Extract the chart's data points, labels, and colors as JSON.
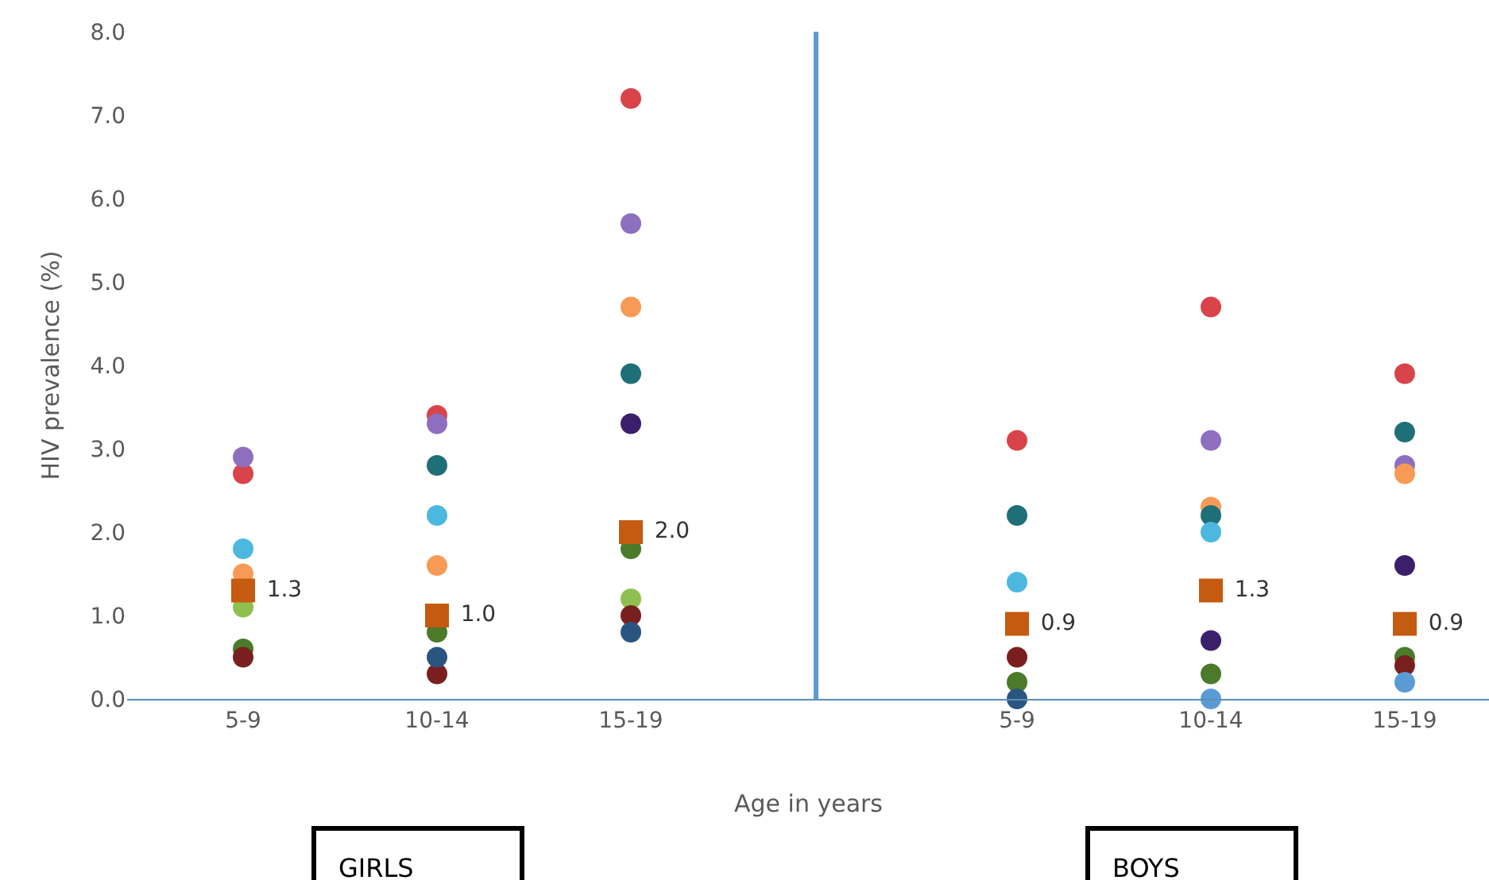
{
  "chart_data": [
    {
      "type": "scatter",
      "categories": [
        "5-9",
        "10-14",
        "15-19"
      ],
      "series": [
        {
          "color": "#d9434a",
          "values": [
            2.7,
            3.4,
            7.2
          ]
        },
        {
          "color": "#8e6fbf",
          "values": [
            2.9,
            3.3,
            5.7
          ]
        },
        {
          "color": "#f79a55",
          "values": [
            1.5,
            1.6,
            4.7
          ]
        },
        {
          "color": "#1f6f78",
          "values": [
            null,
            2.8,
            3.9
          ]
        },
        {
          "color": "#3b1f6b",
          "values": [
            null,
            null,
            3.3
          ]
        },
        {
          "color": "#4cb8e0",
          "values": [
            1.8,
            2.2,
            null
          ]
        },
        {
          "color": "#8fbf4f",
          "values": [
            1.1,
            null,
            1.2
          ]
        },
        {
          "color": "#4a7a2a",
          "values": [
            0.6,
            0.8,
            1.8
          ]
        },
        {
          "color": "#7a1f1f",
          "values": [
            0.5,
            0.3,
            1.0
          ]
        },
        {
          "color": "#2a5580",
          "values": [
            null,
            0.5,
            0.8
          ]
        },
        {
          "color": "#c55a11",
          "marker": "square",
          "values": [
            1.3,
            1.0,
            2.0
          ],
          "value_labels": [
            "1.3",
            "1.0",
            "2.0"
          ]
        }
      ],
      "marker": "circle",
      "ylabel": "HIV prevalence (%)",
      "xlabel": "Age in years",
      "ylim": [
        0,
        8
      ],
      "yticks": [
        {
          "value": 0,
          "label": "0.0"
        },
        {
          "value": 1,
          "label": "1.0"
        },
        {
          "value": 2,
          "label": "2.0"
        },
        {
          "value": 3,
          "label": "3.0"
        },
        {
          "value": 4,
          "label": "4.0"
        },
        {
          "value": 5,
          "label": "5.0"
        },
        {
          "value": 6,
          "label": "6.0"
        },
        {
          "value": 7,
          "label": "7.0"
        },
        {
          "value": 8,
          "label": "8.0"
        }
      ],
      "annotations": [
        "GIRLS"
      ]
    },
    {
      "type": "scatter",
      "categories": [
        "5-9",
        "10-14",
        "15-19"
      ],
      "series": [
        {
          "color": "#d9434a",
          "values": [
            3.1,
            4.7,
            3.9
          ]
        },
        {
          "color": "#8e6fbf",
          "values": [
            null,
            3.1,
            2.8
          ]
        },
        {
          "color": "#f79a55",
          "values": [
            null,
            2.3,
            2.7
          ]
        },
        {
          "color": "#1f6f78",
          "values": [
            2.2,
            2.2,
            3.2
          ]
        },
        {
          "color": "#3b1f6b",
          "values": [
            null,
            0.7,
            1.6
          ]
        },
        {
          "color": "#4cb8e0",
          "values": [
            1.4,
            2.0,
            null
          ]
        },
        {
          "color": "#4a7a2a",
          "values": [
            0.2,
            0.3,
            0.5
          ]
        },
        {
          "color": "#7a1f1f",
          "values": [
            0.5,
            null,
            0.4
          ]
        },
        {
          "color": "#2a5580",
          "values": [
            0.0,
            null,
            null
          ]
        },
        {
          "color": "#5b9bd5",
          "values": [
            null,
            0.0,
            0.2
          ]
        },
        {
          "color": "#c55a11",
          "marker": "square",
          "values": [
            0.9,
            1.3,
            0.9
          ],
          "value_labels": [
            "0.9",
            "1.3",
            "0.9"
          ]
        }
      ],
      "marker": "circle",
      "ylim": [
        0,
        8
      ],
      "tick_labels": "x",
      "annotations": [
        "BOYS"
      ]
    }
  ]
}
